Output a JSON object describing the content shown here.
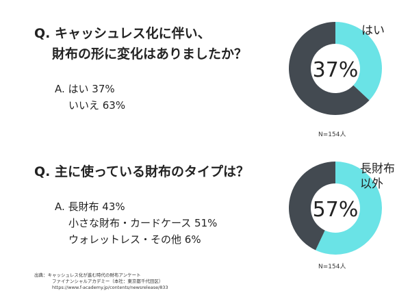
{
  "q1": {
    "question_line1": "Q. キャッシュレス化に伴い、",
    "question_line2": "財布の形に変化はありましたか？",
    "answers": [
      "A. はい 37%",
      "いいえ 63%"
    ]
  },
  "q2": {
    "question": "Q. 主に使っている財布のタイプは？",
    "answers": [
      "A. 長財布 43%",
      "小さな財布・カードケース 51%",
      "ウォレットレス・その他 6%"
    ]
  },
  "colors": {
    "highlight": "#6ae3e6",
    "rest": "#434a51"
  },
  "chart_data": [
    {
      "type": "pie",
      "donut": true,
      "categories": [
        "はい",
        "いいえ"
      ],
      "values": [
        37,
        63
      ],
      "center_label": "37%",
      "slice_label": "はい",
      "sample_note": "N=154人"
    },
    {
      "type": "pie",
      "donut": true,
      "categories": [
        "長財布以外",
        "長財布"
      ],
      "values": [
        57,
        43
      ],
      "center_label": "57%",
      "slice_label_lines": [
        "長財布",
        "以外"
      ],
      "sample_note": "N=154人"
    }
  ],
  "source": {
    "line1": "出典：キャッシュレス化が進む時代の財布アンケート",
    "line2": "ファイナンシャルアカデミー（本社：東京都千代田区）",
    "line3": "https://www.f-academy.jp/contents/newsrelease/833"
  }
}
